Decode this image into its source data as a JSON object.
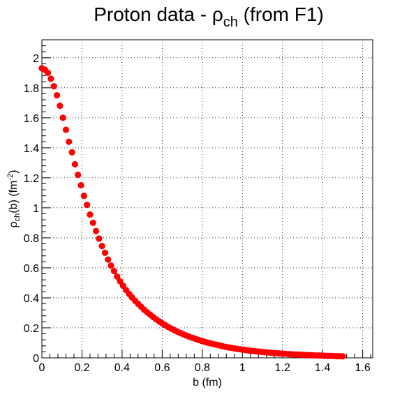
{
  "chart_data": {
    "type": "scatter",
    "title": {
      "main": "Proton data - ρ",
      "sub": "ch",
      "suffix": " (from F1)"
    },
    "xlabel": "b (fm)",
    "ylabel": {
      "symbol": "ρ",
      "sub": "ch",
      "mid": "(b) (fm",
      "sup": "-2",
      "end": ")"
    },
    "xlim": [
      0,
      1.65
    ],
    "ylim": [
      0,
      2.12
    ],
    "x_ticks": [
      0,
      0.2,
      0.4,
      0.6,
      0.8,
      1,
      1.2,
      1.4,
      1.6
    ],
    "y_ticks": [
      0,
      0.2,
      0.4,
      0.6,
      0.8,
      1,
      1.2,
      1.4,
      1.6,
      1.8,
      2
    ],
    "grid": true,
    "marker_color": "#ff0000",
    "series": [
      {
        "x": [
          0.0,
          0.015,
          0.03,
          0.045,
          0.06,
          0.075,
          0.09,
          0.105,
          0.12,
          0.135,
          0.15,
          0.165,
          0.18,
          0.195,
          0.21,
          0.225,
          0.24,
          0.255,
          0.27,
          0.285,
          0.3,
          0.315,
          0.33,
          0.345,
          0.36,
          0.375,
          0.39,
          0.405,
          0.42,
          0.435,
          0.45,
          0.465,
          0.48,
          0.495,
          0.51,
          0.525,
          0.54,
          0.555,
          0.57,
          0.585,
          0.6,
          0.615,
          0.63,
          0.645,
          0.66,
          0.675,
          0.69,
          0.705,
          0.72,
          0.735,
          0.75,
          0.765,
          0.78,
          0.795,
          0.81,
          0.825,
          0.84,
          0.855,
          0.87,
          0.885,
          0.9,
          0.915,
          0.93,
          0.945,
          0.96,
          0.975,
          0.99,
          1.005,
          1.02,
          1.035,
          1.05,
          1.065,
          1.08,
          1.095,
          1.11,
          1.125,
          1.14,
          1.155,
          1.17,
          1.185,
          1.2,
          1.215,
          1.23,
          1.245,
          1.26,
          1.275,
          1.29,
          1.305,
          1.32,
          1.335,
          1.35,
          1.365,
          1.38,
          1.395,
          1.41,
          1.425,
          1.44,
          1.455,
          1.47,
          1.485,
          1.5
        ],
        "y": [
          1.93,
          1.92,
          1.9,
          1.86,
          1.81,
          1.75,
          1.68,
          1.6,
          1.52,
          1.44,
          1.37,
          1.29,
          1.22,
          1.15,
          1.08,
          1.02,
          0.955,
          0.9,
          0.845,
          0.795,
          0.745,
          0.7,
          0.655,
          0.615,
          0.578,
          0.542,
          0.51,
          0.48,
          0.452,
          0.426,
          0.402,
          0.38,
          0.36,
          0.34,
          0.321,
          0.304,
          0.288,
          0.272,
          0.257,
          0.243,
          0.23,
          0.218,
          0.206,
          0.195,
          0.185,
          0.175,
          0.166,
          0.157,
          0.149,
          0.141,
          0.134,
          0.127,
          0.12,
          0.114,
          0.108,
          0.102,
          0.097,
          0.092,
          0.087,
          0.083,
          0.078,
          0.074,
          0.07,
          0.067,
          0.063,
          0.06,
          0.057,
          0.054,
          0.051,
          0.049,
          0.046,
          0.044,
          0.042,
          0.04,
          0.038,
          0.036,
          0.034,
          0.032,
          0.031,
          0.029,
          0.028,
          0.027,
          0.025,
          0.024,
          0.023,
          0.022,
          0.021,
          0.02,
          0.019,
          0.018,
          0.017,
          0.016,
          0.016,
          0.015,
          0.014,
          0.013,
          0.013,
          0.012,
          0.011,
          0.011,
          0.01
        ]
      }
    ]
  }
}
